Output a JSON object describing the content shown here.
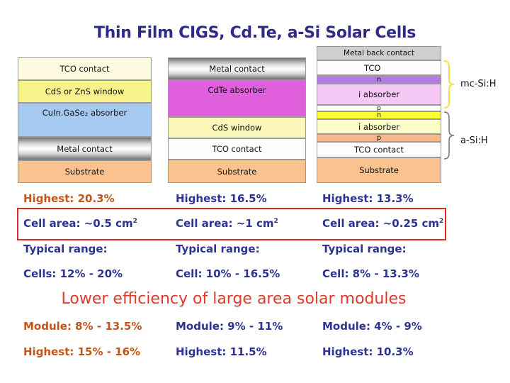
{
  "title": "Thin Film  CIGS, Cd.Te, a-Si  Solar Cells",
  "colors": {
    "title": "#2e2a88",
    "highest_row": "#c0561a",
    "blue_text": "#2c3393",
    "banner": "#e03a2c",
    "highlight_box": "#e02a1f"
  },
  "diagrams": {
    "cigs": {
      "layers": [
        "TCO contact",
        "CdS or ZnS window",
        "CuIn.GaSe₂ absorber",
        "Metal contact",
        "Substrate"
      ]
    },
    "cdte": {
      "layers": [
        "Metal contact",
        "CdTe absorber",
        "CdS window",
        "TCO contact",
        "Substrate"
      ]
    },
    "asi": {
      "layers": [
        "Metal back contact",
        "TCO",
        "n",
        "i absorber",
        "p",
        "n",
        "i absorber",
        "p",
        "TCO contact",
        "Substrate"
      ],
      "label_top": "mc-Si:H",
      "label_bottom": "a-Si:H"
    }
  },
  "rows": {
    "highest": [
      "Highest: 20.3%",
      "Highest: 16.5%",
      "Highest: 13.3%"
    ],
    "cell_area": [
      "Cell area: ~0.5 cm",
      "Cell area: ~1 cm",
      "Cell area: ~0.25 cm"
    ],
    "cell_area_sup": "2",
    "typical_range": [
      "Typical range:",
      "Typical range:",
      "Typical range:"
    ],
    "cells": [
      "Cells: 12% - 20%",
      "Cell: 10% - 16.5%",
      "Cell: 8% - 13.3%"
    ],
    "banner": "Lower efficiency of large area solar modules",
    "module": [
      "Module: 8% - 13.5%",
      "Module: 9% - 11%",
      "Module: 4% - 9%"
    ],
    "highest_module": [
      "Highest: 15% - 16%",
      "Highest: 11.5%",
      "Highest: 10.3%"
    ]
  }
}
